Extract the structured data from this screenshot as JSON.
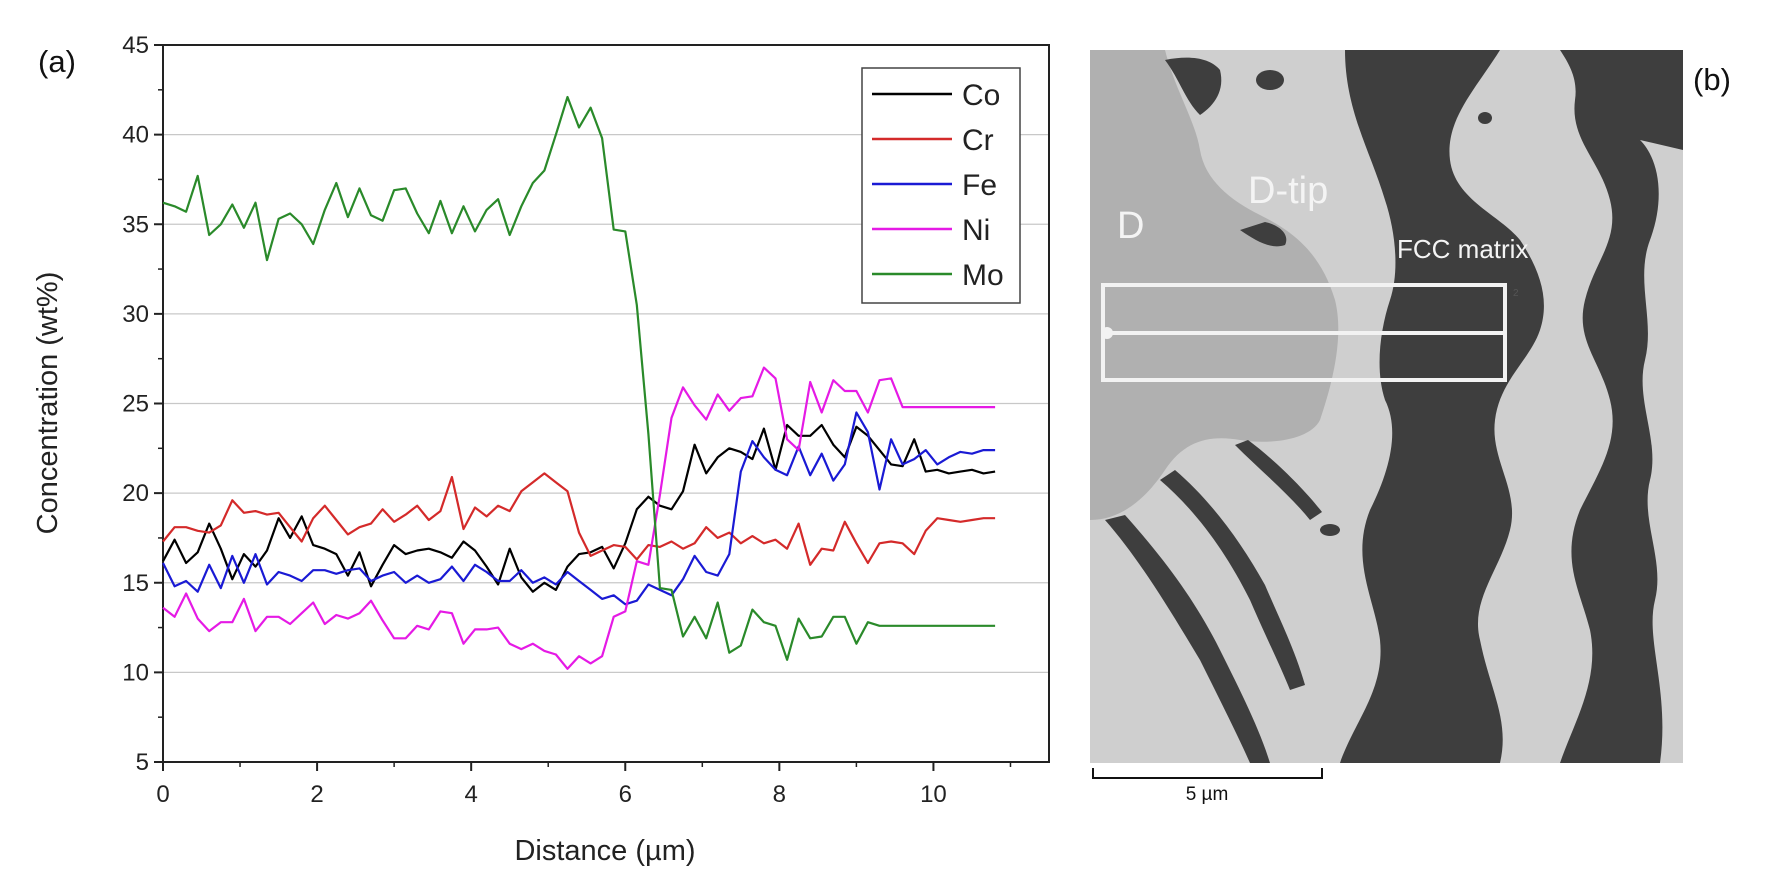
{
  "panel_a_label": "(a)",
  "panel_b_label": "(b)",
  "chart_data": {
    "type": "line",
    "title": "",
    "xlabel": "Distance  (µm)",
    "ylabel": "Concentration (wt%)",
    "xlim": [
      0,
      11.5
    ],
    "ylim": [
      5,
      45
    ],
    "xticks": [
      0,
      2,
      4,
      6,
      8,
      10
    ],
    "yticks": [
      5,
      10,
      15,
      20,
      25,
      30,
      35,
      40,
      45
    ],
    "grid": "horizontal",
    "legend_position": "top-right",
    "x": [
      0.0,
      0.15,
      0.3,
      0.45,
      0.6,
      0.75,
      0.9,
      1.05,
      1.2,
      1.35,
      1.5,
      1.65,
      1.8,
      1.95,
      2.1,
      2.25,
      2.4,
      2.55,
      2.7,
      2.85,
      3.0,
      3.15,
      3.3,
      3.45,
      3.6,
      3.75,
      3.9,
      4.05,
      4.2,
      4.35,
      4.5,
      4.65,
      4.8,
      4.95,
      5.1,
      5.25,
      5.4,
      5.55,
      5.7,
      5.85,
      6.0,
      6.15,
      6.3,
      6.45,
      6.6,
      6.75,
      6.9,
      7.05,
      7.2,
      7.35,
      7.5,
      7.65,
      7.8,
      7.95,
      8.1,
      8.25,
      8.4,
      8.55,
      8.7,
      8.85,
      9.0,
      9.15,
      9.3,
      9.45,
      9.6,
      9.75,
      9.9,
      10.05,
      10.2,
      10.35,
      10.5,
      10.65,
      10.8
    ],
    "series": [
      {
        "name": "Co",
        "color": "#000000",
        "values": [
          16.2,
          17.4,
          16.1,
          16.7,
          18.3,
          16.9,
          15.2,
          16.6,
          15.9,
          16.8,
          18.6,
          17.5,
          18.7,
          17.1,
          16.9,
          16.6,
          15.4,
          16.7,
          14.8,
          16.0,
          17.1,
          16.6,
          16.8,
          16.9,
          16.7,
          16.4,
          17.3,
          16.8,
          15.9,
          14.9,
          16.9,
          15.3,
          14.5,
          15.0,
          14.6,
          15.9,
          16.6,
          16.7,
          17.0,
          15.8,
          17.2,
          19.1,
          19.8,
          19.3,
          19.1,
          20.1,
          22.7,
          21.1,
          22.0,
          22.5,
          22.3,
          21.9,
          23.6,
          21.3,
          23.8,
          23.2,
          23.2,
          23.8,
          22.7,
          22.0,
          23.7,
          23.2,
          22.4,
          21.6,
          21.5,
          23.0,
          21.2,
          21.3,
          21.1,
          21.2,
          21.3,
          21.1,
          21.2
        ]
      },
      {
        "name": "Cr",
        "color": "#d42a2a",
        "values": [
          17.3,
          18.1,
          18.1,
          17.9,
          17.8,
          18.2,
          19.6,
          18.9,
          19.0,
          18.8,
          18.9,
          18.1,
          17.3,
          18.6,
          19.3,
          18.5,
          17.7,
          18.1,
          18.3,
          19.1,
          18.4,
          18.8,
          19.3,
          18.5,
          19.0,
          20.9,
          18.0,
          19.2,
          18.7,
          19.3,
          19.0,
          20.1,
          20.6,
          21.1,
          20.6,
          20.1,
          17.8,
          16.5,
          16.8,
          17.1,
          17.0,
          16.3,
          17.1,
          17.0,
          17.3,
          16.9,
          17.2,
          18.1,
          17.5,
          17.8,
          17.2,
          17.6,
          17.2,
          17.4,
          16.9,
          18.3,
          16.0,
          16.9,
          16.8,
          18.4,
          17.2,
          16.1,
          17.2,
          17.3,
          17.2,
          16.6,
          17.9,
          18.6,
          18.5,
          18.4,
          18.5,
          18.6,
          18.6
        ]
      },
      {
        "name": "Fe",
        "color": "#1a1ad4",
        "values": [
          16.1,
          14.8,
          15.1,
          14.5,
          16.0,
          14.7,
          16.5,
          15.0,
          16.6,
          14.9,
          15.6,
          15.4,
          15.1,
          15.7,
          15.7,
          15.5,
          15.7,
          15.8,
          15.1,
          15.4,
          15.6,
          15.0,
          15.4,
          15.0,
          15.2,
          15.9,
          15.1,
          16.0,
          15.6,
          15.1,
          15.1,
          15.7,
          15.0,
          15.3,
          14.9,
          15.6,
          15.1,
          14.6,
          14.1,
          14.3,
          13.8,
          14.0,
          14.9,
          14.6,
          14.3,
          15.2,
          16.5,
          15.6,
          15.4,
          16.6,
          21.2,
          22.9,
          22.0,
          21.3,
          21.0,
          22.6,
          21.0,
          22.2,
          20.7,
          21.6,
          24.5,
          23.4,
          20.2,
          23.0,
          21.6,
          21.9,
          22.4,
          21.6,
          22.0,
          22.3,
          22.2,
          22.4,
          22.4
        ]
      },
      {
        "name": "Ni",
        "color": "#e51ae5",
        "values": [
          13.6,
          13.1,
          14.4,
          13.0,
          12.3,
          12.8,
          12.8,
          14.1,
          12.3,
          13.1,
          13.1,
          12.7,
          13.3,
          13.9,
          12.7,
          13.2,
          13.0,
          13.3,
          14.0,
          12.9,
          11.9,
          11.9,
          12.6,
          12.4,
          13.4,
          13.3,
          11.6,
          12.4,
          12.4,
          12.5,
          11.6,
          11.3,
          11.6,
          11.2,
          11.0,
          10.2,
          10.9,
          10.5,
          10.9,
          13.1,
          13.4,
          16.2,
          16.0,
          19.9,
          24.2,
          25.9,
          24.9,
          24.1,
          25.5,
          24.6,
          25.3,
          25.4,
          27.0,
          26.4,
          23.0,
          22.4,
          26.2,
          24.5,
          26.3,
          25.7,
          25.7,
          24.5,
          26.3,
          26.4,
          24.8,
          24.8,
          24.8,
          24.8,
          24.8,
          24.8,
          24.8,
          24.8,
          24.8
        ]
      },
      {
        "name": "Mo",
        "color": "#2a8a2a",
        "values": [
          36.2,
          36.0,
          35.7,
          37.7,
          34.4,
          35.0,
          36.1,
          34.8,
          36.2,
          33.0,
          35.3,
          35.6,
          35.0,
          33.9,
          35.8,
          37.3,
          35.4,
          37.0,
          35.5,
          35.2,
          36.9,
          37.0,
          35.6,
          34.5,
          36.3,
          34.5,
          36.0,
          34.6,
          35.8,
          36.4,
          34.4,
          36.0,
          37.3,
          38.0,
          40.0,
          42.1,
          40.4,
          41.5,
          39.8,
          34.7,
          34.6,
          30.5,
          23.3,
          14.7,
          14.6,
          12.0,
          13.1,
          11.9,
          13.9,
          11.1,
          11.5,
          13.5,
          12.8,
          12.6,
          10.7,
          13.0,
          11.9,
          12.0,
          13.1,
          13.1,
          11.6,
          12.8,
          12.6,
          12.6,
          12.6,
          12.6,
          12.6,
          12.6,
          12.6,
          12.6,
          12.6,
          12.6,
          12.6
        ]
      }
    ]
  },
  "micrograph": {
    "labels": {
      "d": "D",
      "d_tip": "D-tip",
      "fcc": "FCC matrix"
    },
    "scale_bar_label": "5  µm",
    "box_marker": "2",
    "colors": {
      "background": "#b0b0b0",
      "light_phase": "#cfcfcf",
      "dark_phase": "#3e3e3e",
      "box": "#f2f2f2"
    }
  }
}
